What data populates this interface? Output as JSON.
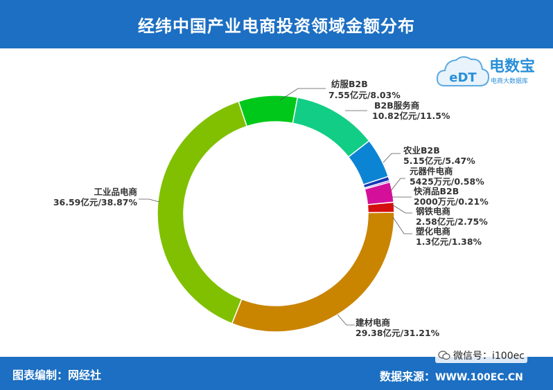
{
  "header": {
    "title": "经纬中国产业电商投资领域金额分布"
  },
  "logo": {
    "brand": "电数宝",
    "mark": "eDT",
    "sub": "电商大数据库"
  },
  "footer": {
    "credit": "图表编制：网经社",
    "source_label": "数据来源：",
    "source_url": "WWW.100EC.CN",
    "wechat": "微信号：i100ec"
  },
  "chart_data": {
    "type": "pie",
    "donut": true,
    "title": "经纬中国产业电商投资领域金额分布",
    "slices": [
      {
        "name": "纺服B2B",
        "value_label": "7.55亿元/8.03%",
        "percent": 8.03,
        "color": "#00c81a"
      },
      {
        "name": "B2B服务商",
        "value_label": "10.82亿元/11.5%",
        "percent": 11.5,
        "color": "#12cd85"
      },
      {
        "name": "农业B2B",
        "value_label": "5.15亿元/5.47%",
        "percent": 5.47,
        "color": "#0c84d4"
      },
      {
        "name": "元器件电商",
        "value_label": "5425万元/0.58%",
        "percent": 0.58,
        "color": "#1438b8"
      },
      {
        "name": "快消品B2B",
        "value_label": "2000万元/0.21%",
        "percent": 0.21,
        "color": "#6a1cc0"
      },
      {
        "name": "钢铁电商",
        "value_label": "2.58亿元/2.75%",
        "percent": 2.75,
        "color": "#d4109a"
      },
      {
        "name": "塑化电商",
        "value_label": "1.3亿元/1.38%",
        "percent": 1.38,
        "color": "#d40f0f"
      },
      {
        "name": "建材电商",
        "value_label": "29.38亿元/31.21%",
        "percent": 31.21,
        "color": "#c98400"
      },
      {
        "name": "工业品电商",
        "value_label": "36.59亿元/38.87%",
        "percent": 38.87,
        "color": "#80c000"
      }
    ]
  }
}
